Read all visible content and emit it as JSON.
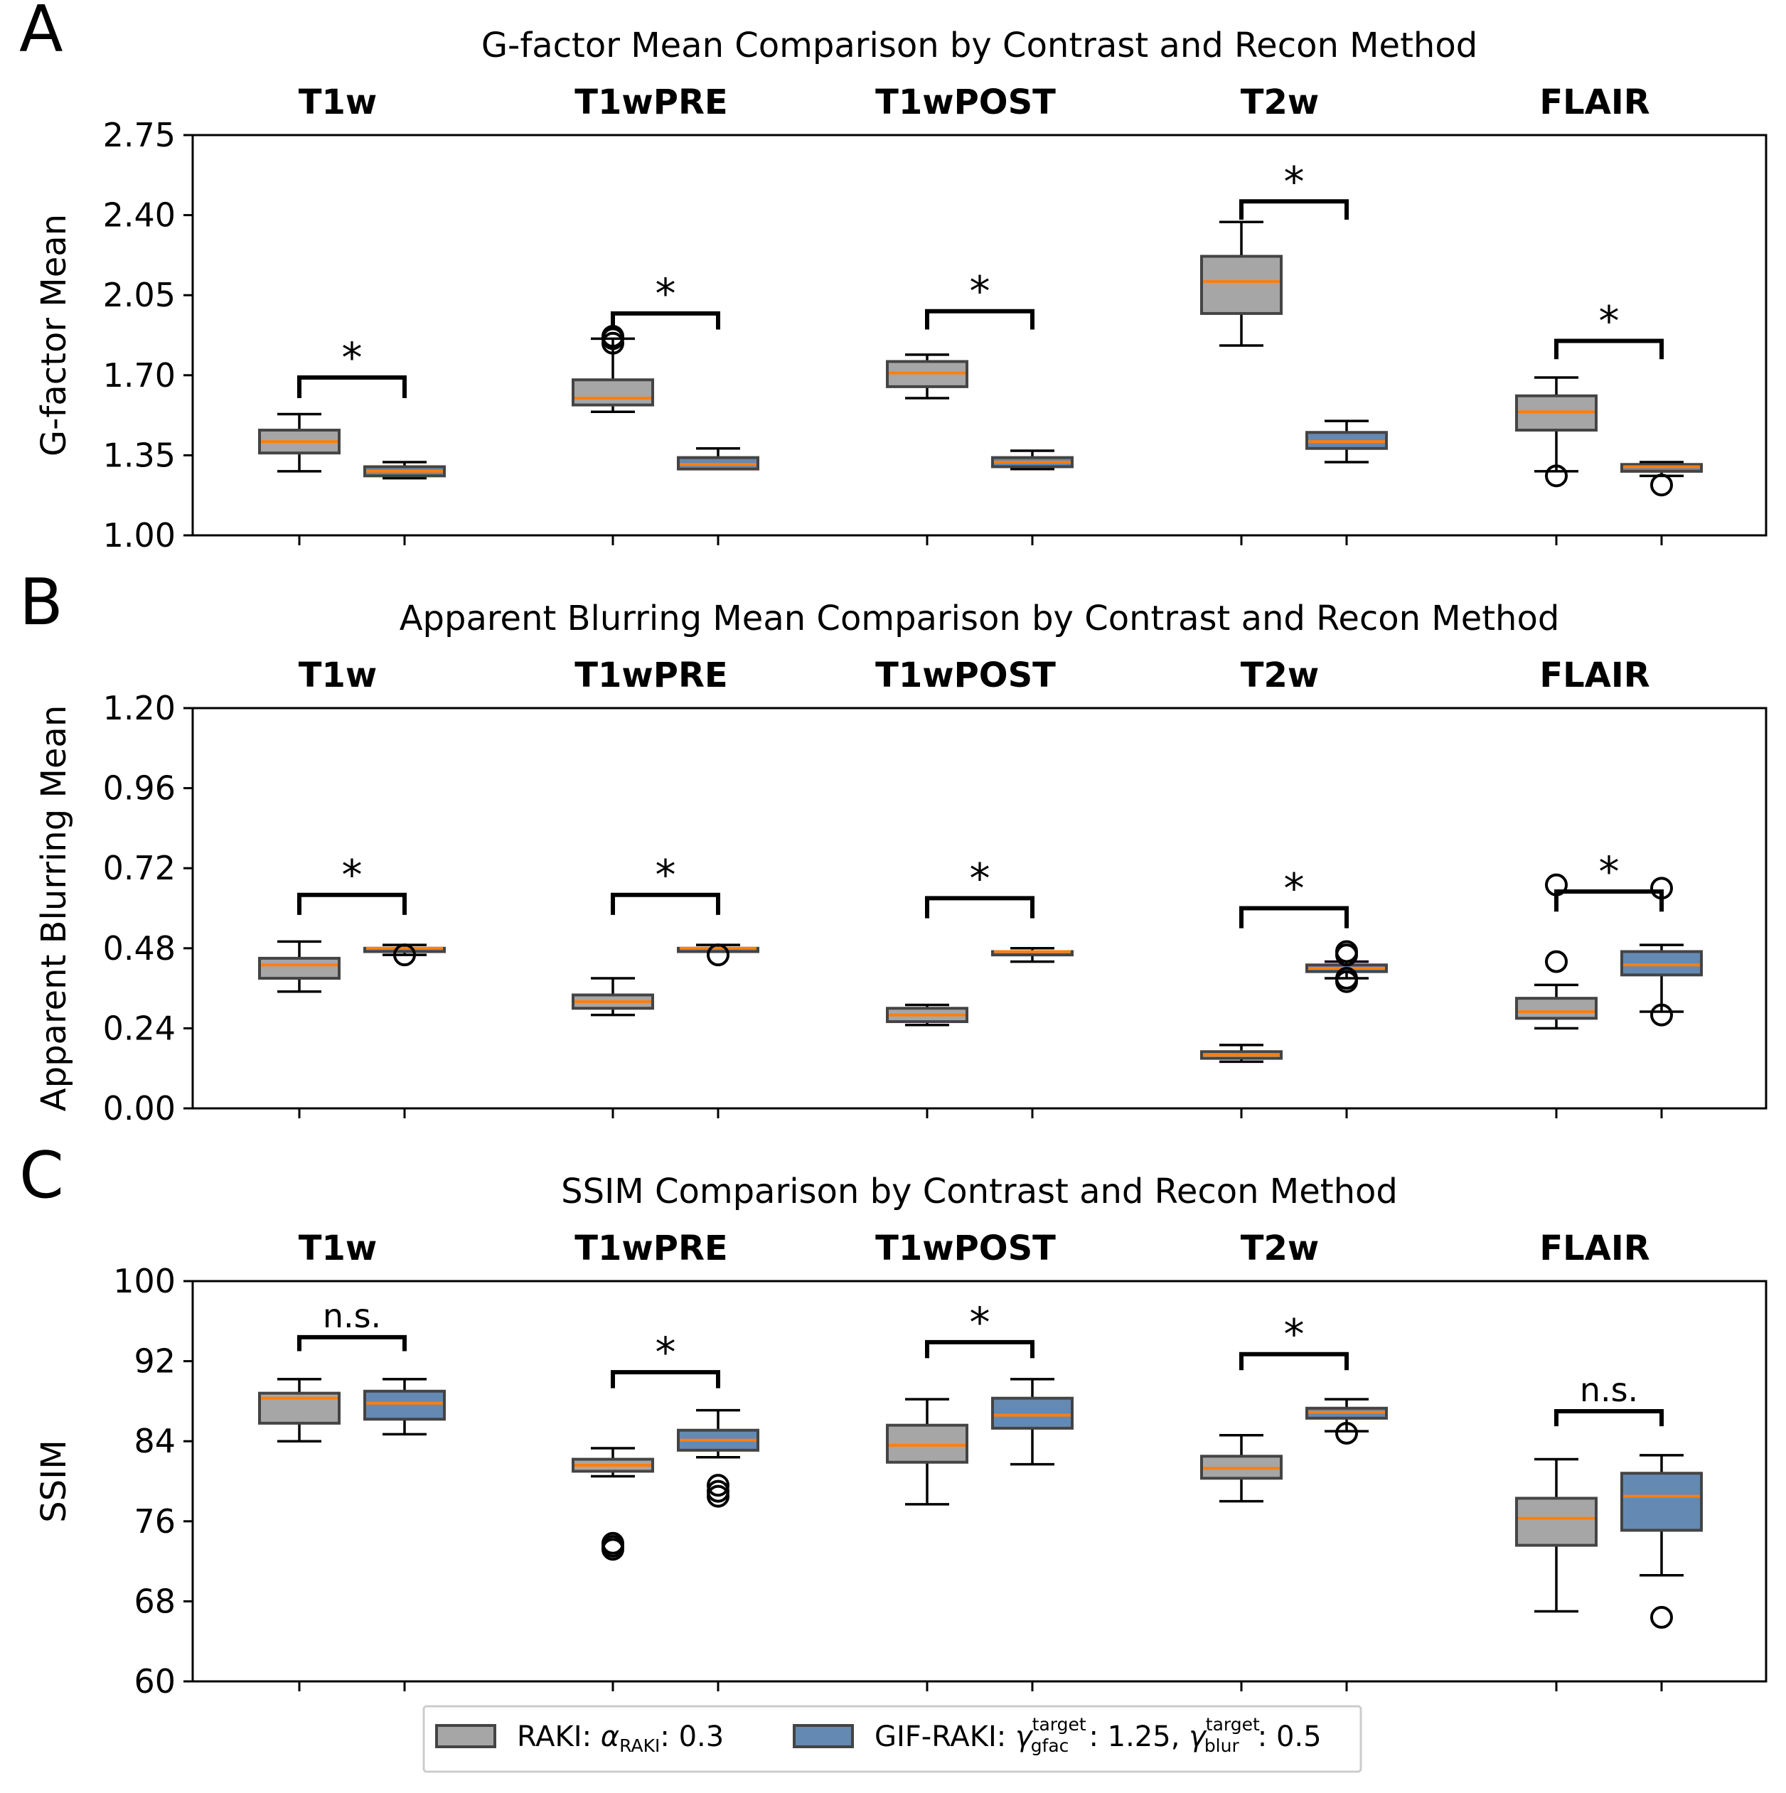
{
  "legend": {
    "raki": {
      "prefix": "RAKI: ",
      "alpha": "α",
      "alpha_sub": "RAKI",
      "suffix": ": 0.3"
    },
    "gif": {
      "prefix": "GIF-RAKI: ",
      "gamma": "γ",
      "gfac_sup": "target",
      "gfac_sub": "gfac",
      "gfac_val": ": 1.25, ",
      "blur_sup": "target",
      "blur_sub": "blur",
      "blur_val": ": 0.5"
    }
  },
  "colors": {
    "raki": "#a6a6a6",
    "gif": "#6489b3",
    "median": "#ff7f0e",
    "edge": "#444444"
  },
  "chart_data": [
    {
      "panel_label": "A",
      "type": "box",
      "title": "G-factor Mean Comparison by Contrast and Recon Method",
      "ylabel": "G-factor Mean",
      "ylim": [
        1.0,
        2.75
      ],
      "yticks": [
        "1.00",
        "1.35",
        "1.70",
        "2.05",
        "2.40",
        "2.75"
      ],
      "categories": [
        "T1w",
        "T1wPRE",
        "T1wPOST",
        "T2w",
        "FLAIR"
      ],
      "series": [
        {
          "name": "RAKI",
          "boxes": [
            {
              "wlo": 1.28,
              "q1": 1.36,
              "med": 1.41,
              "q3": 1.46,
              "whi": 1.53,
              "fliers": []
            },
            {
              "wlo": 1.54,
              "q1": 1.57,
              "med": 1.6,
              "q3": 1.68,
              "whi": 1.86,
              "fliers": [
                1.84,
                1.86,
                1.87
              ]
            },
            {
              "wlo": 1.6,
              "q1": 1.65,
              "med": 1.71,
              "q3": 1.76,
              "whi": 1.79,
              "fliers": []
            },
            {
              "wlo": 1.83,
              "q1": 1.97,
              "med": 2.11,
              "q3": 2.22,
              "whi": 2.37,
              "fliers": []
            },
            {
              "wlo": 1.28,
              "q1": 1.46,
              "med": 1.54,
              "q3": 1.61,
              "whi": 1.69,
              "fliers": [
                1.26
              ]
            }
          ]
        },
        {
          "name": "GIF-RAKI",
          "boxes": [
            {
              "wlo": 1.25,
              "q1": 1.26,
              "med": 1.28,
              "q3": 1.3,
              "whi": 1.32,
              "fliers": []
            },
            {
              "wlo": 1.29,
              "q1": 1.29,
              "med": 1.31,
              "q3": 1.34,
              "whi": 1.38,
              "fliers": []
            },
            {
              "wlo": 1.29,
              "q1": 1.3,
              "med": 1.32,
              "q3": 1.34,
              "whi": 1.37,
              "fliers": []
            },
            {
              "wlo": 1.32,
              "q1": 1.38,
              "med": 1.41,
              "q3": 1.45,
              "whi": 1.5,
              "fliers": []
            },
            {
              "wlo": 1.26,
              "q1": 1.28,
              "med": 1.3,
              "q3": 1.31,
              "whi": 1.32,
              "fliers": [
                1.22
              ]
            }
          ]
        }
      ],
      "significance": [
        {
          "label": "*",
          "y": 1.69,
          "leg": 1.6
        },
        {
          "label": "*",
          "y": 1.97,
          "leg": 1.9
        },
        {
          "label": "*",
          "y": 1.98,
          "leg": 1.9
        },
        {
          "label": "*",
          "y": 2.46,
          "leg": 2.38
        },
        {
          "label": "*",
          "y": 1.85,
          "leg": 1.77
        }
      ]
    },
    {
      "panel_label": "B",
      "type": "box",
      "title": "Apparent Blurring Mean Comparison by Contrast and Recon Method",
      "ylabel": "Apparent Blurring Mean",
      "ylim": [
        0.0,
        1.2
      ],
      "yticks": [
        "0.00",
        "0.24",
        "0.48",
        "0.72",
        "0.96",
        "1.20"
      ],
      "categories": [
        "T1w",
        "T1wPRE",
        "T1wPOST",
        "T2w",
        "FLAIR"
      ],
      "series": [
        {
          "name": "RAKI",
          "boxes": [
            {
              "wlo": 0.35,
              "q1": 0.39,
              "med": 0.43,
              "q3": 0.45,
              "whi": 0.5,
              "fliers": []
            },
            {
              "wlo": 0.28,
              "q1": 0.3,
              "med": 0.32,
              "q3": 0.34,
              "whi": 0.39,
              "fliers": []
            },
            {
              "wlo": 0.25,
              "q1": 0.26,
              "med": 0.28,
              "q3": 0.3,
              "whi": 0.31,
              "fliers": []
            },
            {
              "wlo": 0.14,
              "q1": 0.15,
              "med": 0.16,
              "q3": 0.17,
              "whi": 0.19,
              "fliers": []
            },
            {
              "wlo": 0.24,
              "q1": 0.27,
              "med": 0.29,
              "q3": 0.33,
              "whi": 0.37,
              "fliers": [
                0.44,
                0.67
              ]
            }
          ]
        },
        {
          "name": "GIF-RAKI",
          "boxes": [
            {
              "wlo": 0.46,
              "q1": 0.47,
              "med": 0.48,
              "q3": 0.48,
              "whi": 0.49,
              "fliers": [
                0.46
              ]
            },
            {
              "wlo": 0.47,
              "q1": 0.47,
              "med": 0.48,
              "q3": 0.48,
              "whi": 0.49,
              "fliers": [
                0.46
              ]
            },
            {
              "wlo": 0.44,
              "q1": 0.46,
              "med": 0.47,
              "q3": 0.47,
              "whi": 0.48,
              "fliers": []
            },
            {
              "wlo": 0.39,
              "q1": 0.41,
              "med": 0.42,
              "q3": 0.43,
              "whi": 0.44,
              "fliers": [
                0.38,
                0.39,
                0.46,
                0.47
              ]
            },
            {
              "wlo": 0.29,
              "q1": 0.4,
              "med": 0.43,
              "q3": 0.47,
              "whi": 0.49,
              "fliers": [
                0.28,
                0.66
              ]
            }
          ]
        }
      ],
      "significance": [
        {
          "label": "*",
          "y": 0.64,
          "leg": 0.58
        },
        {
          "label": "*",
          "y": 0.64,
          "leg": 0.58
        },
        {
          "label": "*",
          "y": 0.63,
          "leg": 0.57
        },
        {
          "label": "*",
          "y": 0.6,
          "leg": 0.54
        },
        {
          "label": "*",
          "y": 0.65,
          "leg": 0.59
        }
      ]
    },
    {
      "panel_label": "C",
      "type": "box",
      "title": "SSIM Comparison by Contrast and Recon Method",
      "ylabel": "SSIM",
      "ylim": [
        60,
        100
      ],
      "yticks": [
        "60",
        "68",
        "76",
        "84",
        "92",
        "100"
      ],
      "categories": [
        "T1w",
        "T1wPRE",
        "T1wPOST",
        "T2w",
        "FLAIR"
      ],
      "series": [
        {
          "name": "RAKI",
          "boxes": [
            {
              "wlo": 84.0,
              "q1": 85.8,
              "med": 88.3,
              "q3": 88.8,
              "whi": 90.2,
              "fliers": []
            },
            {
              "wlo": 80.5,
              "q1": 81.0,
              "med": 81.6,
              "q3": 82.2,
              "whi": 83.3,
              "fliers": [
                73.2,
                73.5,
                73.8
              ]
            },
            {
              "wlo": 77.7,
              "q1": 81.9,
              "med": 83.6,
              "q3": 85.6,
              "whi": 88.2,
              "fliers": []
            },
            {
              "wlo": 78.0,
              "q1": 80.3,
              "med": 81.3,
              "q3": 82.5,
              "whi": 84.6,
              "fliers": []
            },
            {
              "wlo": 67.0,
              "q1": 73.6,
              "med": 76.3,
              "q3": 78.3,
              "whi": 82.2,
              "fliers": []
            }
          ]
        },
        {
          "name": "GIF-RAKI",
          "boxes": [
            {
              "wlo": 84.7,
              "q1": 86.2,
              "med": 87.8,
              "q3": 89.0,
              "whi": 90.2,
              "fliers": []
            },
            {
              "wlo": 82.4,
              "q1": 83.1,
              "med": 84.1,
              "q3": 85.1,
              "whi": 87.1,
              "fliers": [
                78.5,
                79.0,
                79.6
              ]
            },
            {
              "wlo": 81.7,
              "q1": 85.3,
              "med": 86.6,
              "q3": 88.3,
              "whi": 90.2,
              "fliers": []
            },
            {
              "wlo": 85.0,
              "q1": 86.3,
              "med": 86.9,
              "q3": 87.3,
              "whi": 88.2,
              "fliers": [
                84.8
              ]
            },
            {
              "wlo": 70.6,
              "q1": 75.1,
              "med": 78.5,
              "q3": 80.8,
              "whi": 82.6,
              "fliers": [
                66.4
              ]
            }
          ]
        }
      ],
      "significance": [
        {
          "label": "n.s.",
          "y": 94.4,
          "leg": 93.0
        },
        {
          "label": "*",
          "y": 90.9,
          "leg": 89.3
        },
        {
          "label": "*",
          "y": 93.9,
          "leg": 92.3
        },
        {
          "label": "*",
          "y": 92.7,
          "leg": 91.1
        },
        {
          "label": "n.s.",
          "y": 87.0,
          "leg": 85.5
        }
      ]
    }
  ]
}
